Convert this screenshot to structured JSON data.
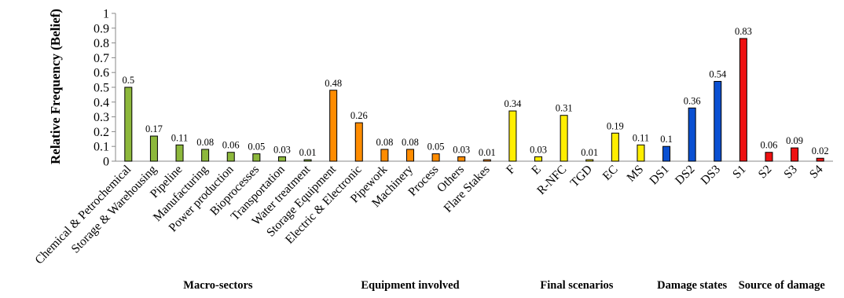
{
  "chart_data": {
    "type": "bar",
    "ylabel": "Relative Frequency (Belief)",
    "ylim": [
      0,
      1
    ],
    "yticks": [
      "0",
      "0.1",
      "0.2",
      "0.3",
      "0.4",
      "0.5",
      "0.6",
      "0.7",
      "0.8",
      "0.9",
      "1"
    ],
    "grid": false,
    "legend": "none",
    "groups": [
      {
        "name": "Macro-sectors",
        "color": "#8DB83C",
        "categories": [
          "Chemical & Petrochemical",
          "Storage & Warehousing",
          "Pipeline",
          "Manufacturing",
          "Power production",
          "Bioprocesses",
          "Transportation",
          "Water treatment"
        ],
        "values": [
          0.5,
          0.17,
          0.11,
          0.08,
          0.06,
          0.05,
          0.03,
          0.01
        ],
        "labels": [
          "0.5",
          "0.17",
          "0.11",
          "0.08",
          "0.06",
          "0.05",
          "0.03",
          "0.01"
        ]
      },
      {
        "name": "Equipment involved",
        "color": "#FF8C00",
        "categories": [
          "Storage Equipment",
          "Electric & Electronic",
          "Pipework",
          "Machinery",
          "Process",
          "Others",
          "Flare Stakes"
        ],
        "values": [
          0.48,
          0.26,
          0.08,
          0.08,
          0.05,
          0.03,
          0.01
        ],
        "labels": [
          "0.48",
          "0.26",
          "0.08",
          "0.08",
          "0.05",
          "0.03",
          "0.01"
        ]
      },
      {
        "name": "Final scenarios",
        "color": "#FFEE00",
        "categories": [
          "F",
          "E",
          "R-NFC",
          "TGD",
          "EC",
          "MS"
        ],
        "values": [
          0.34,
          0.03,
          0.31,
          0.01,
          0.19,
          0.11
        ],
        "labels": [
          "0.34",
          "0.03",
          "0.31",
          "0.01",
          "0.19",
          "0.11"
        ]
      },
      {
        "name": "Damage states",
        "color": "#0A50D2",
        "categories": [
          "DS1",
          "DS2",
          "DS3"
        ],
        "values": [
          0.1,
          0.36,
          0.54
        ],
        "labels": [
          "0.1",
          "0.36",
          "0.54"
        ]
      },
      {
        "name": "Source of damage",
        "color": "#EE1111",
        "categories": [
          "S1",
          "S2",
          "S3",
          "S4"
        ],
        "values": [
          0.83,
          0.06,
          0.09,
          0.02
        ],
        "labels": [
          "0.83",
          "0.06",
          "0.09",
          "0.02"
        ]
      }
    ]
  }
}
